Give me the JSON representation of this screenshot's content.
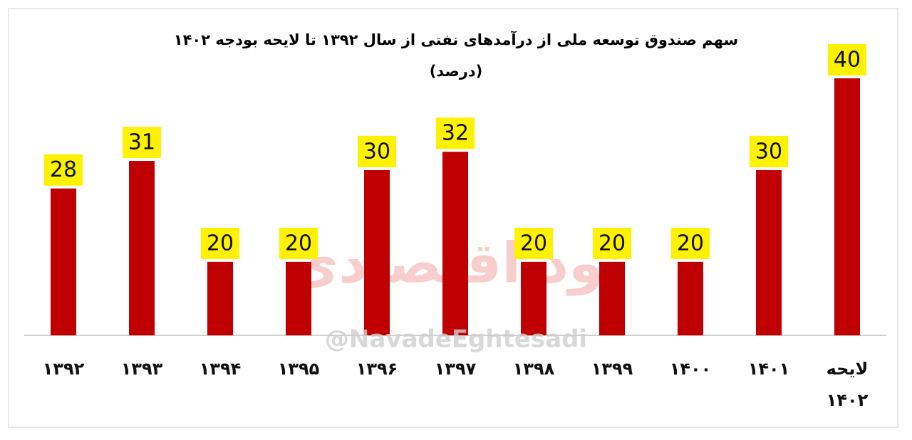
{
  "chart_data": {
    "type": "bar",
    "title": "سهم صندوق توسعه ملی از درآمدهای نفتی از سال ۱۳۹۲ تا لایحه بودجه ۱۴۰۲",
    "subtitle": "(درصد)",
    "categories": [
      "۱۳۹۲",
      "۱۳۹۳",
      "۱۳۹۴",
      "۱۳۹۵",
      "۱۳۹۶",
      "۱۳۹۷",
      "۱۳۹۸",
      "۱۳۹۹",
      "۱۴۰۰",
      "۱۴۰۱",
      "لایحه ۱۴۰۲"
    ],
    "values": [
      28,
      31,
      20,
      20,
      30,
      32,
      20,
      20,
      20,
      30,
      40
    ],
    "color": "#c00000",
    "label_background": "#fff200",
    "ylim": [
      12,
      40
    ],
    "watermark": {
      "logo_text": "نود اقتصادی",
      "handle": "@NavadeEghtesadi"
    }
  }
}
